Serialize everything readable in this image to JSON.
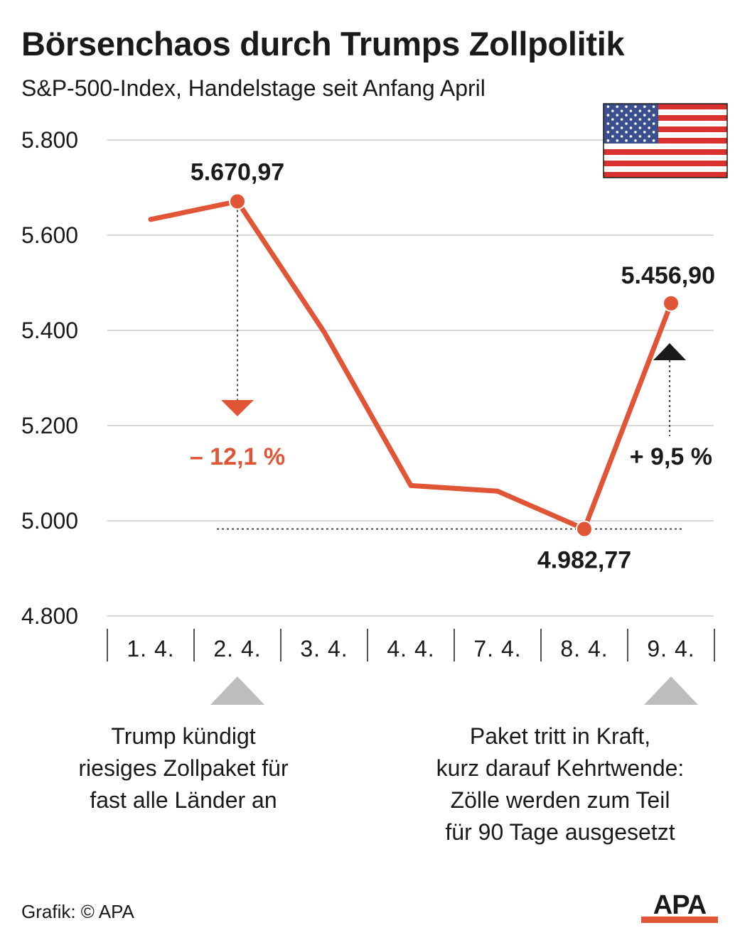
{
  "title": "Börsenchaos durch Trumps Zollpolitik",
  "subtitle": "S&P-500-Index, Handelstage seit Anfang April",
  "colors": {
    "line": "#e05535",
    "text": "#1a1a1a",
    "grid": "#cccccc",
    "event_marker": "#bdbdbd",
    "gain_arrow": "#1a1a1a"
  },
  "chart_data": {
    "type": "line",
    "categories": [
      "1. 4.",
      "2. 4.",
      "3. 4.",
      "4. 4.",
      "7. 4.",
      "8. 4.",
      "9. 4."
    ],
    "values": [
      5633.07,
      5670.97,
      5396.52,
      5074.08,
      5062.25,
      4982.77,
      5456.9
    ],
    "y_ticks": [
      "5.800",
      "5.600",
      "5.400",
      "5.200",
      "5.000",
      "4.800"
    ],
    "ylim": [
      4800,
      5800
    ],
    "grid": true,
    "labels": {
      "peak": "5.670,97",
      "low": "4.982,77",
      "last": "5.456,90",
      "drop": "– 12,1 %",
      "gain": "+ 9,5 %"
    }
  },
  "notes": {
    "left": [
      "Trump kündigt",
      "riesiges Zollpaket für",
      "fast alle Länder an"
    ],
    "right": [
      "Paket tritt in Kraft,",
      "kurz darauf Kehrtwende:",
      "Zölle werden zum Teil",
      "für 90 Tage ausgesetzt"
    ]
  },
  "icons": {
    "flag": "us-flag-icon",
    "logo": "apa-logo"
  },
  "logo_text": "APA",
  "credit": "Grafik: © APA"
}
